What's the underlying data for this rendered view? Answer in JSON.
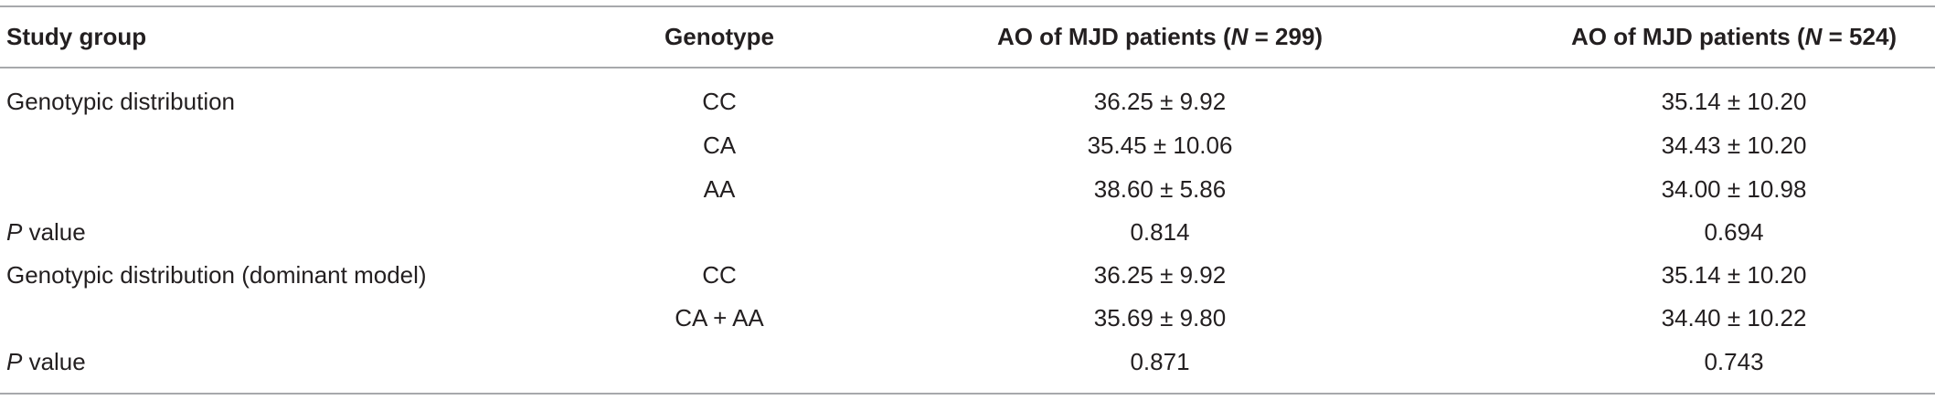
{
  "table": {
    "header": [
      [
        {
          "t": "Study group"
        }
      ],
      [
        {
          "t": "Genotype"
        }
      ],
      [
        {
          "t": "AO of MJD patients ("
        },
        {
          "t": "N",
          "i": true
        },
        {
          "t": " = 299)"
        }
      ],
      [
        {
          "t": "AO of MJD patients ("
        },
        {
          "t": "N",
          "i": true
        },
        {
          "t": " = 524)"
        }
      ]
    ],
    "rows": [
      [
        [
          {
            "t": "Genotypic distribution"
          }
        ],
        [
          {
            "t": "CC"
          }
        ],
        [
          {
            "t": "36.25 ± 9.92"
          }
        ],
        [
          {
            "t": "35.14 ± 10.20"
          }
        ]
      ],
      [
        null,
        [
          {
            "t": "CA"
          }
        ],
        [
          {
            "t": "35.45 ± 10.06"
          }
        ],
        [
          {
            "t": "34.43 ± 10.20"
          }
        ]
      ],
      [
        null,
        [
          {
            "t": "AA"
          }
        ],
        [
          {
            "t": "38.60 ± 5.86"
          }
        ],
        [
          {
            "t": "34.00 ± 10.98"
          }
        ]
      ],
      [
        [
          {
            "t": "P",
            "i": true
          },
          {
            "t": " value"
          }
        ],
        null,
        [
          {
            "t": "0.814"
          }
        ],
        [
          {
            "t": "0.694"
          }
        ]
      ],
      [
        [
          {
            "t": "Genotypic distribution (dominant model)"
          }
        ],
        [
          {
            "t": "CC"
          }
        ],
        [
          {
            "t": "36.25 ± 9.92"
          }
        ],
        [
          {
            "t": "35.14 ± 10.20"
          }
        ]
      ],
      [
        null,
        [
          {
            "t": "CA + AA"
          }
        ],
        [
          {
            "t": "35.69 ± 9.80"
          }
        ],
        [
          {
            "t": "34.40 ± 10.22"
          }
        ]
      ],
      [
        [
          {
            "t": "P",
            "i": true
          },
          {
            "t": " value"
          }
        ],
        null,
        [
          {
            "t": "0.871"
          }
        ],
        [
          {
            "t": "0.743"
          }
        ]
      ]
    ]
  }
}
